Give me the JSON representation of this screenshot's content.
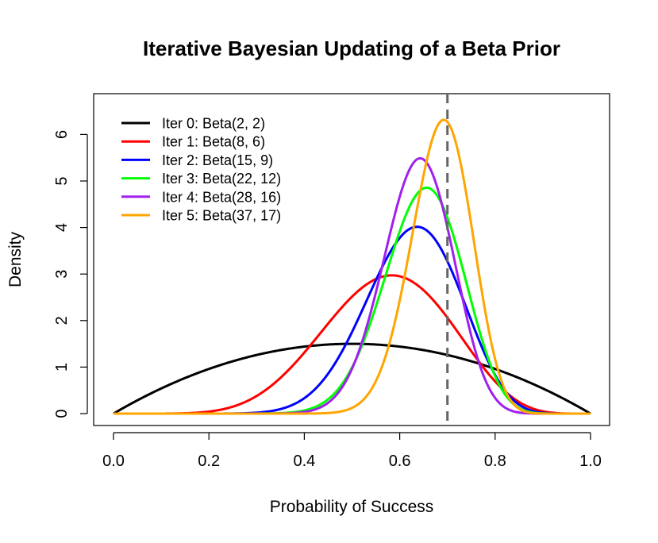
{
  "chart_data": {
    "type": "line",
    "title": "Iterative Bayesian Updating of a Beta Prior",
    "xlabel": "Probability of Success",
    "ylabel": "Density",
    "xlim": [
      0,
      1
    ],
    "ylim": [
      0,
      6.6
    ],
    "x_ticks": [
      "0.0",
      "0.2",
      "0.4",
      "0.6",
      "0.8",
      "1.0"
    ],
    "x_tick_values": [
      0,
      0.2,
      0.4,
      0.6,
      0.8,
      1.0
    ],
    "y_ticks": [
      "0",
      "1",
      "2",
      "3",
      "4",
      "5",
      "6"
    ],
    "y_tick_values": [
      0,
      1,
      2,
      3,
      4,
      5,
      6
    ],
    "grid": false,
    "legend_position": "top-left",
    "reference_line": {
      "x": 0.7,
      "style": "dashed",
      "color": "#666666"
    },
    "series": [
      {
        "name": "Iter 0: Beta(2, 2)",
        "alpha": 2,
        "beta": 2,
        "color": "#000000"
      },
      {
        "name": "Iter 1: Beta(8, 6)",
        "alpha": 8,
        "beta": 6,
        "color": "#ff0000"
      },
      {
        "name": "Iter 2: Beta(15, 9)",
        "alpha": 15,
        "beta": 9,
        "color": "#0000ff"
      },
      {
        "name": "Iter 3: Beta(22, 12)",
        "alpha": 22,
        "beta": 12,
        "color": "#00ff00"
      },
      {
        "name": "Iter 4: Beta(28, 16)",
        "alpha": 28,
        "beta": 16,
        "color": "#a020f0"
      },
      {
        "name": "Iter 5: Beta(37, 17)",
        "alpha": 37,
        "beta": 17,
        "color": "#ffa500"
      }
    ]
  }
}
